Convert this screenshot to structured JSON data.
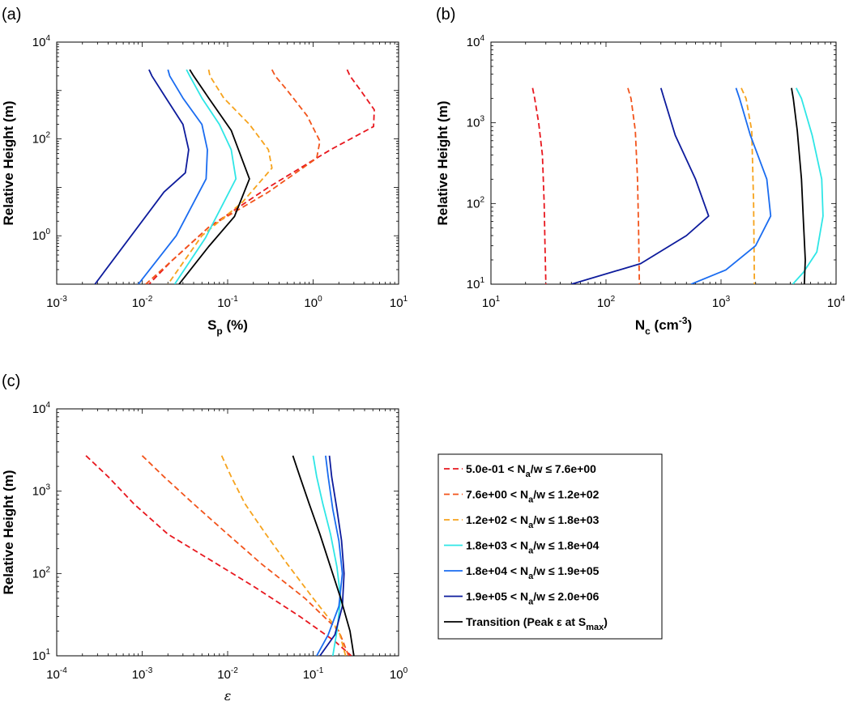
{
  "colors": {
    "red": "#e8171e",
    "orange_red": "#f2541b",
    "orange": "#f6a31d",
    "cyan": "#2fe6e6",
    "blue": "#1a6cf0",
    "navy": "#0d1b9c",
    "black": "#000000"
  },
  "legend": [
    {
      "label": "5.0e-01 < N",
      "sub": "a",
      "tail": "/w ≤ 7.6e+00",
      "color": "red",
      "dashed": true
    },
    {
      "label": "7.6e+00 < N",
      "sub": "a",
      "tail": "/w ≤ 1.2e+02",
      "color": "orange_red",
      "dashed": true
    },
    {
      "label": "1.2e+02 < N",
      "sub": "a",
      "tail": "/w ≤ 1.8e+03",
      "color": "orange",
      "dashed": true
    },
    {
      "label": "1.8e+03 < N",
      "sub": "a",
      "tail": "/w ≤ 1.8e+04",
      "color": "cyan",
      "dashed": false
    },
    {
      "label": "1.8e+04 < N",
      "sub": "a",
      "tail": "/w ≤ 1.9e+05",
      "color": "blue",
      "dashed": false
    },
    {
      "label": "1.9e+05 < N",
      "sub": "a",
      "tail": "/w ≤ 2.0e+06",
      "color": "navy",
      "dashed": false
    },
    {
      "label": "Transition (Peak ε at S",
      "sub": "max",
      "tail": ")",
      "color": "black",
      "dashed": false
    }
  ],
  "chart_data": [
    {
      "panel": "(a)",
      "type": "line",
      "xscale": "log",
      "yscale": "log",
      "xlim": [
        0.001,
        10
      ],
      "ylim": [
        0.1,
        10000
      ],
      "xlabel": "S",
      "xlabel_sub": "p",
      "xlabel_tail": " (%)",
      "ylabel": "Relative Height (m)",
      "x_ticks": [
        {
          "base": "10",
          "exp": "-3",
          "v": 0.001
        },
        {
          "base": "10",
          "exp": "-2",
          "v": 0.01
        },
        {
          "base": "10",
          "exp": "-1",
          "v": 0.1
        },
        {
          "base": "10",
          "exp": "0",
          "v": 1
        },
        {
          "base": "10",
          "exp": "1",
          "v": 10
        }
      ],
      "y_ticks": [
        {
          "base": "10",
          "exp": "0",
          "v": 1
        },
        {
          "base": "10",
          "exp": "2",
          "v": 100
        },
        {
          "base": "10",
          "exp": "4",
          "v": 10000
        }
      ],
      "series": [
        {
          "color": "red",
          "dashed": true,
          "x": [
            2.5,
            2.7,
            3.6,
            5.2,
            5.1,
            1.6,
            0.3,
            0.06,
            0.022,
            0.012
          ],
          "y": [
            2700,
            2000,
            1000,
            400,
            180,
            60,
            10,
            1.5,
            0.3,
            0.1
          ]
        },
        {
          "color": "orange_red",
          "dashed": true,
          "x": [
            0.33,
            0.36,
            0.5,
            0.85,
            1.2,
            1.1,
            0.3,
            0.06,
            0.022,
            0.011
          ],
          "y": [
            2700,
            2000,
            1000,
            300,
            90,
            40,
            8,
            1.5,
            0.3,
            0.1
          ]
        },
        {
          "color": "orange",
          "dashed": true,
          "x": [
            0.06,
            0.062,
            0.09,
            0.18,
            0.3,
            0.33,
            0.15,
            0.05,
            0.02
          ],
          "y": [
            2700,
            2000,
            700,
            200,
            60,
            25,
            5,
            1,
            0.1
          ]
        },
        {
          "color": "cyan",
          "dashed": false,
          "x": [
            0.033,
            0.036,
            0.05,
            0.08,
            0.11,
            0.125,
            0.055,
            0.024
          ],
          "y": [
            2700,
            2000,
            700,
            200,
            60,
            15,
            0.9,
            0.1
          ]
        },
        {
          "color": "blue",
          "dashed": false,
          "x": [
            0.02,
            0.021,
            0.03,
            0.05,
            0.058,
            0.056,
            0.025,
            0.009
          ],
          "y": [
            2700,
            2000,
            700,
            200,
            60,
            15,
            1,
            0.1
          ]
        },
        {
          "color": "navy",
          "dashed": false,
          "x": [
            0.012,
            0.013,
            0.019,
            0.03,
            0.035,
            0.032,
            0.018,
            0.0028
          ],
          "y": [
            2700,
            2000,
            700,
            200,
            60,
            20,
            8,
            0.1
          ]
        },
        {
          "color": "black",
          "dashed": false,
          "x": [
            0.036,
            0.04,
            0.06,
            0.11,
            0.18,
            0.12,
            0.06,
            0.027
          ],
          "y": [
            2700,
            2000,
            700,
            150,
            15,
            2.5,
            0.6,
            0.1
          ]
        }
      ]
    },
    {
      "panel": "(b)",
      "type": "line",
      "xscale": "log",
      "yscale": "log",
      "xlim": [
        10,
        10000
      ],
      "ylim": [
        10,
        10000
      ],
      "xlabel": "N",
      "xlabel_sub": "c",
      "xlabel_tail": " (cm",
      "xlabel_sup": "-3",
      "xlabel_end": ")",
      "ylabel": "Relative Height (m)",
      "x_ticks": [
        {
          "base": "10",
          "exp": "1",
          "v": 10
        },
        {
          "base": "10",
          "exp": "2",
          "v": 100
        },
        {
          "base": "10",
          "exp": "3",
          "v": 1000
        },
        {
          "base": "10",
          "exp": "4",
          "v": 10000
        }
      ],
      "y_ticks": [
        {
          "base": "10",
          "exp": "1",
          "v": 10
        },
        {
          "base": "10",
          "exp": "2",
          "v": 100
        },
        {
          "base": "10",
          "exp": "3",
          "v": 1000
        },
        {
          "base": "10",
          "exp": "4",
          "v": 10000
        }
      ],
      "series": [
        {
          "color": "red",
          "dashed": true,
          "x": [
            23,
            24,
            26,
            28,
            29,
            29.5,
            30
          ],
          "y": [
            2700,
            2000,
            1000,
            400,
            100,
            30,
            10
          ]
        },
        {
          "color": "orange_red",
          "dashed": true,
          "x": [
            155,
            165,
            180,
            188,
            192,
            195
          ],
          "y": [
            2700,
            2000,
            800,
            200,
            50,
            10
          ]
        },
        {
          "color": "orange",
          "dashed": true,
          "x": [
            1500,
            1650,
            1850,
            1920,
            1950
          ],
          "y": [
            2700,
            2000,
            800,
            100,
            10
          ]
        },
        {
          "color": "cyan",
          "dashed": false,
          "x": [
            4500,
            5000,
            6200,
            7500,
            7700,
            6800,
            5200,
            4200
          ],
          "y": [
            2700,
            2000,
            700,
            200,
            70,
            25,
            14,
            10
          ]
        },
        {
          "color": "blue",
          "dashed": false,
          "x": [
            1350,
            1450,
            1800,
            2500,
            2700,
            2000,
            1100,
            550
          ],
          "y": [
            2700,
            2000,
            700,
            200,
            70,
            30,
            15,
            10
          ]
        },
        {
          "color": "navy",
          "dashed": false,
          "x": [
            300,
            320,
            400,
            600,
            780,
            500,
            200,
            50
          ],
          "y": [
            2700,
            2000,
            700,
            200,
            70,
            40,
            18,
            10
          ]
        },
        {
          "color": "black",
          "dashed": false,
          "x": [
            4100,
            4250,
            4600,
            5000,
            5200,
            5400,
            5300
          ],
          "y": [
            2700,
            2000,
            800,
            200,
            60,
            20,
            10
          ]
        }
      ]
    },
    {
      "panel": "(c)",
      "type": "line",
      "xscale": "log",
      "yscale": "log",
      "xlim": [
        0.0001,
        1
      ],
      "ylim": [
        10,
        10000
      ],
      "xlabel": "ε",
      "ylabel": "Relative Height (m)",
      "x_ticks": [
        {
          "base": "10",
          "exp": "-4",
          "v": 0.0001
        },
        {
          "base": "10",
          "exp": "-3",
          "v": 0.001
        },
        {
          "base": "10",
          "exp": "-2",
          "v": 0.01
        },
        {
          "base": "10",
          "exp": "-1",
          "v": 0.1
        },
        {
          "base": "10",
          "exp": "0",
          "v": 1
        }
      ],
      "y_ticks": [
        {
          "base": "10",
          "exp": "1",
          "v": 10
        },
        {
          "base": "10",
          "exp": "2",
          "v": 100
        },
        {
          "base": "10",
          "exp": "3",
          "v": 1000
        },
        {
          "base": "10",
          "exp": "4",
          "v": 10000
        }
      ],
      "series": [
        {
          "color": "red",
          "dashed": true,
          "x": [
            0.00022,
            0.0004,
            0.0008,
            0.002,
            0.006,
            0.02,
            0.07,
            0.18,
            0.28
          ],
          "y": [
            2700,
            1500,
            700,
            300,
            150,
            70,
            30,
            15,
            10
          ]
        },
        {
          "color": "orange_red",
          "dashed": true,
          "x": [
            0.001,
            0.0018,
            0.004,
            0.01,
            0.025,
            0.08,
            0.2,
            0.26
          ],
          "y": [
            2700,
            1500,
            700,
            300,
            130,
            50,
            20,
            10
          ]
        },
        {
          "color": "orange",
          "dashed": true,
          "x": [
            0.0085,
            0.011,
            0.016,
            0.028,
            0.05,
            0.1,
            0.2,
            0.24
          ],
          "y": [
            2700,
            1500,
            700,
            300,
            130,
            50,
            20,
            10
          ]
        },
        {
          "color": "cyan",
          "dashed": false,
          "x": [
            0.1,
            0.11,
            0.13,
            0.16,
            0.19,
            0.21,
            0.19,
            0.17
          ],
          "y": [
            2700,
            1500,
            700,
            300,
            120,
            50,
            20,
            10
          ]
        },
        {
          "color": "blue",
          "dashed": false,
          "x": [
            0.14,
            0.15,
            0.17,
            0.2,
            0.22,
            0.2,
            0.15,
            0.11
          ],
          "y": [
            2700,
            1500,
            600,
            250,
            100,
            40,
            18,
            10
          ]
        },
        {
          "color": "navy",
          "dashed": false,
          "x": [
            0.155,
            0.165,
            0.19,
            0.215,
            0.23,
            0.22,
            0.18,
            0.12
          ],
          "y": [
            2700,
            1500,
            600,
            250,
            100,
            40,
            18,
            10
          ]
        },
        {
          "color": "black",
          "dashed": false,
          "x": [
            0.058,
            0.07,
            0.09,
            0.12,
            0.16,
            0.21,
            0.27,
            0.3
          ],
          "y": [
            2700,
            1500,
            700,
            300,
            120,
            50,
            20,
            10
          ]
        }
      ]
    }
  ]
}
